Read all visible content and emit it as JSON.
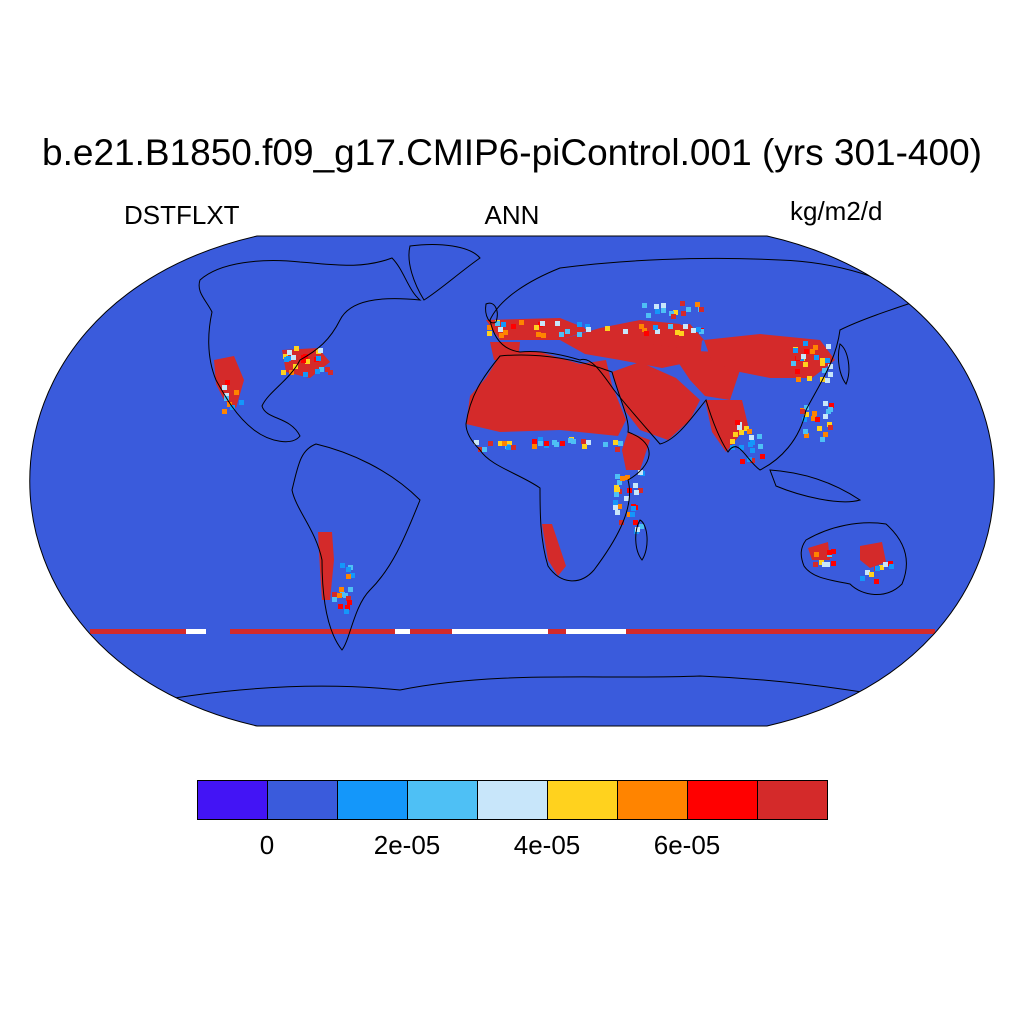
{
  "title": "b.e21.B1850.f09_g17.CMIP6-piControl.001 (yrs 301-400)",
  "left_label": "DSTFLXT",
  "center_label": "ANN",
  "right_label": "kg/m2/d",
  "map": {
    "projection": "Robinson",
    "ocean_color": "#3a5bdc",
    "dust_high_color": "#d42a2a",
    "coastline_color": "#000000",
    "source_regions": [
      "Sahara",
      "Arabian Peninsula",
      "Middle East",
      "Central Asia",
      "Gobi / Taklamakan",
      "Thar",
      "Southwestern North America",
      "Atacama / Patagonia",
      "Namib / Kalahari",
      "Australian interior"
    ]
  },
  "legend": {
    "colors": [
      "#4314f5",
      "#3a5bdc",
      "#1497fa",
      "#4ec0f5",
      "#c8e6fa",
      "#ffd21e",
      "#ff8400",
      "#ff0000",
      "#d42a2a"
    ],
    "tick_labels": [
      "0",
      "2e-05",
      "4e-05",
      "6e-05"
    ]
  }
}
